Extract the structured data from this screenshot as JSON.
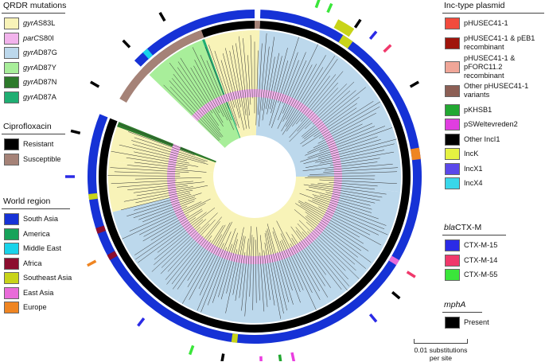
{
  "legends": {
    "qrdr": {
      "title": "QRDR mutations",
      "items": [
        {
          "gene": "gyrA",
          "mut": "S83L",
          "color": "#f8f3b8"
        },
        {
          "gene": "parC",
          "mut": "S80I",
          "color": "#f2b3ec"
        },
        {
          "gene": "gyrA",
          "mut": "D87G",
          "color": "#bcd8ec"
        },
        {
          "gene": "gyrA",
          "mut": "D87Y",
          "color": "#a8ee9a"
        },
        {
          "gene": "gyrA",
          "mut": "D87N",
          "color": "#2d7a2b"
        },
        {
          "gene": "gyrA",
          "mut": "D87A",
          "color": "#1fae72"
        }
      ]
    },
    "cipro": {
      "title": "Ciprofloxacin",
      "items": [
        {
          "label": "Resistant",
          "color": "#000000"
        },
        {
          "label": "Susceptible",
          "color": "#a58277"
        }
      ]
    },
    "region": {
      "title": "World region",
      "items": [
        {
          "label": "South Asia",
          "color": "#1632d6"
        },
        {
          "label": "America",
          "color": "#17a35a"
        },
        {
          "label": "Middle East",
          "color": "#19d3ea"
        },
        {
          "label": "Africa",
          "color": "#8c0d2f"
        },
        {
          "label": "Southeast Asia",
          "color": "#c8d419"
        },
        {
          "label": "East Asia",
          "color": "#e96bd9"
        },
        {
          "label": "Europe",
          "color": "#ef8522"
        }
      ]
    },
    "inc": {
      "title": "Inc-type plasmid",
      "items": [
        {
          "label": "pHUSEC41-1",
          "color": "#f24b3d"
        },
        {
          "label": "pHUSEC41-1 & pEB1 recombinant",
          "color": "#a0150c"
        },
        {
          "label": "pHUSEC41-1 & pFORC11.2 recombinant",
          "color": "#f0a698"
        },
        {
          "label": "Other pHUSEC41-1 variants",
          "color": "#8c5f55"
        },
        {
          "label": "pKHSB1",
          "color": "#22a831"
        },
        {
          "label": "pSWeltevreden2",
          "color": "#e03ee0"
        },
        {
          "label": "Other IncI1",
          "color": "#000000"
        },
        {
          "label": "IncK",
          "color": "#e5f241"
        },
        {
          "label": "IncX1",
          "color": "#5b48ea"
        },
        {
          "label": "IncX4",
          "color": "#39d7ea"
        }
      ]
    },
    "ctx": {
      "title_gene": "bla",
      "title_rest": "CTX-M",
      "items": [
        {
          "label": "CTX-M-15",
          "color": "#2b2be6"
        },
        {
          "label": "CTX-M-14",
          "color": "#f0386b"
        },
        {
          "label": "CTX-M-55",
          "color": "#3ae63a"
        }
      ]
    },
    "mph": {
      "title": "mphA",
      "items": [
        {
          "label": "Present",
          "color": "#000000"
        }
      ]
    }
  },
  "scale_label": "0.01 substitutions per site"
}
